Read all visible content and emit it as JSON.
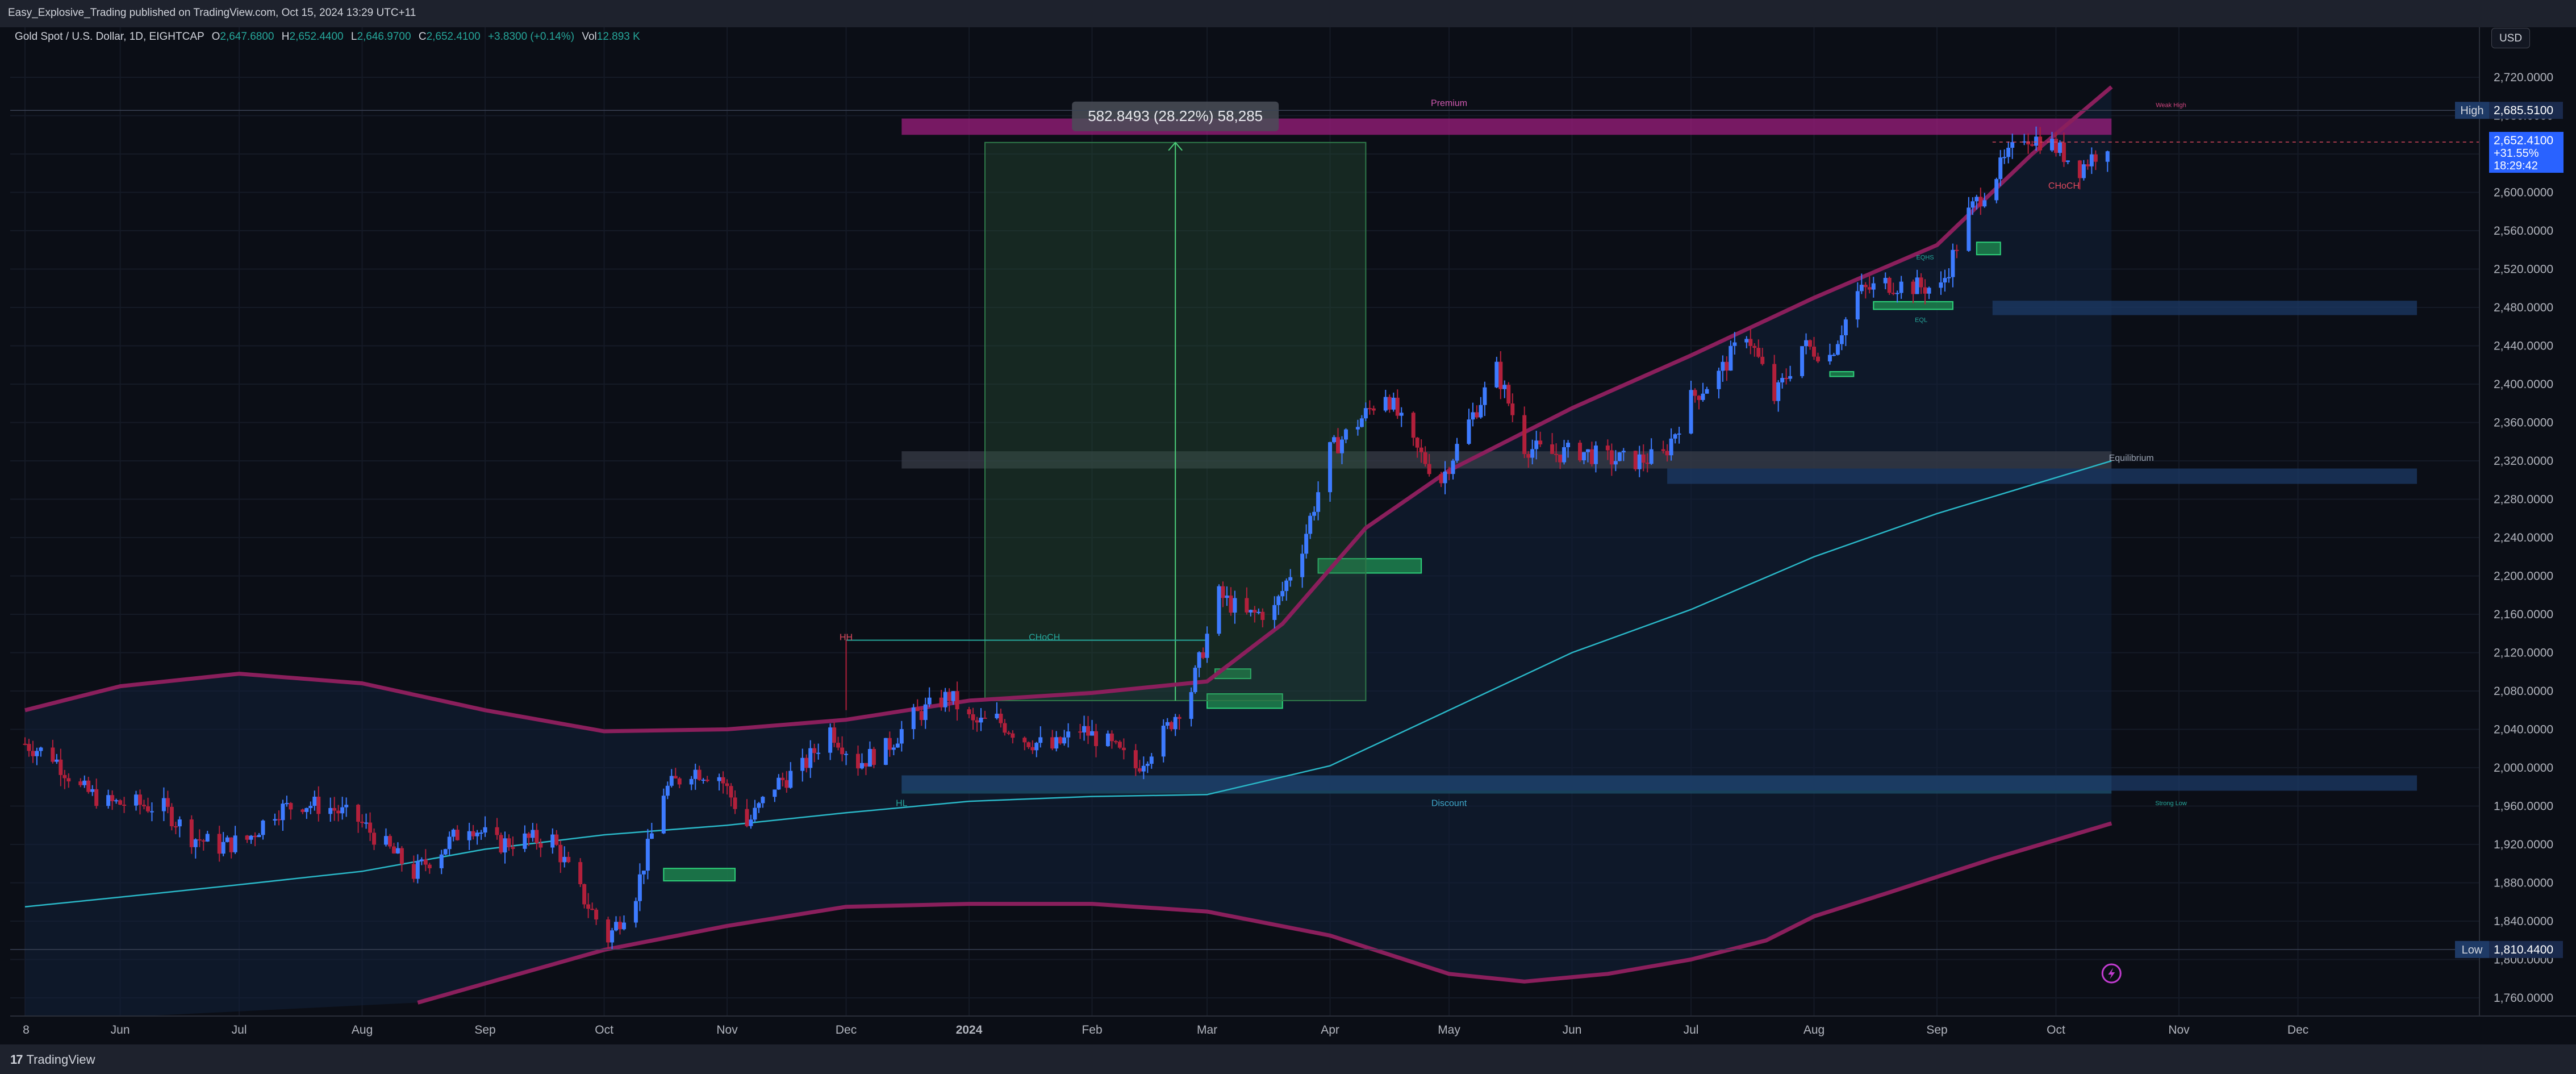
{
  "header": {
    "publish_text": "Easy_Explosive_Trading published on TradingView.com, Oct 15, 2024 13:29 UTC+11"
  },
  "symbol": {
    "name": "Gold Spot / U.S. Dollar, 1D, EIGHTCAP",
    "o_label": "O",
    "o_value": "2,647.6800",
    "h_label": "H",
    "h_value": "2,652.4400",
    "l_label": "L",
    "l_value": "2,646.9700",
    "c_label": "C",
    "c_value": "2,652.4100",
    "change": "+3.8300 (+0.14%)",
    "vol_label": "Vol",
    "vol_value": "12.893 K"
  },
  "currency_button": "USD",
  "footer": {
    "brand": "TradingView",
    "logo_mark": "17"
  },
  "colors": {
    "background": "#0b0e16",
    "bull": "#3d7bff",
    "bear": "#b2203b",
    "band": "#8a1f5c",
    "ema": "#2ab7c7",
    "premium": "#9c1d7e",
    "discount": "#1c4f6b",
    "equilibrium": "#3b3f4a",
    "order_block": "#1f8f52",
    "fvg_blue": "#1c3a66"
  },
  "chart_data": {
    "type": "candlestick",
    "symbol": "XAUUSD",
    "timeframe": "1D",
    "y_ticks": [
      1760,
      1800,
      1840,
      1880,
      1920,
      1960,
      2000,
      2040,
      2080,
      2120,
      2160,
      2200,
      2240,
      2280,
      2320,
      2360,
      2400,
      2440,
      2480,
      2520,
      2560,
      2600,
      2640,
      2680,
      2720
    ],
    "y_tick_labels": [
      "1,760.0000",
      "1,800.0000",
      "1,840.0000",
      "1,880.0000",
      "1,920.0000",
      "1,960.0000",
      "2,000.0000",
      "2,040.0000",
      "2,080.0000",
      "2,120.0000",
      "2,160.0000",
      "2,200.0000",
      "2,240.0000",
      "2,280.0000",
      "2,320.0000",
      "2,360.0000",
      "2,400.0000",
      "2,440.0000",
      "2,480.0000",
      "2,520.0000",
      "2,560.0000",
      "2,600.0000",
      "2,640.0000",
      "2,680.0000",
      "2,720.0000"
    ],
    "ylim": [
      1735,
      2745
    ],
    "x_start": "2023-05-08",
    "x_end": "2024-12-31",
    "x_ticks": [
      {
        "date": "2023-05-08",
        "label": "8"
      },
      {
        "date": "2023-06-01",
        "label": "Jun"
      },
      {
        "date": "2023-07-01",
        "label": "Jul"
      },
      {
        "date": "2023-08-01",
        "label": "Aug"
      },
      {
        "date": "2023-09-01",
        "label": "Sep"
      },
      {
        "date": "2023-10-01",
        "label": "Oct"
      },
      {
        "date": "2023-11-01",
        "label": "Nov"
      },
      {
        "date": "2023-12-01",
        "label": "Dec"
      },
      {
        "date": "2024-01-01",
        "label": "2024"
      },
      {
        "date": "2024-02-01",
        "label": "Feb"
      },
      {
        "date": "2024-03-01",
        "label": "Mar"
      },
      {
        "date": "2024-04-01",
        "label": "Apr"
      },
      {
        "date": "2024-05-01",
        "label": "May"
      },
      {
        "date": "2024-06-01",
        "label": "Jun"
      },
      {
        "date": "2024-07-01",
        "label": "Jul"
      },
      {
        "date": "2024-08-01",
        "label": "Aug"
      },
      {
        "date": "2024-09-01",
        "label": "Sep"
      },
      {
        "date": "2024-10-01",
        "label": "Oct"
      },
      {
        "date": "2024-11-01",
        "label": "Nov"
      },
      {
        "date": "2024-12-01",
        "label": "Dec"
      }
    ],
    "close_path": [
      [
        "2023-05-08",
        2025
      ],
      [
        "2023-05-15",
        2012
      ],
      [
        "2023-05-22",
        1978
      ],
      [
        "2023-05-29",
        1963
      ],
      [
        "2023-06-05",
        1962
      ],
      [
        "2023-06-12",
        1958
      ],
      [
        "2023-06-19",
        1928
      ],
      [
        "2023-06-26",
        1918
      ],
      [
        "2023-07-03",
        1925
      ],
      [
        "2023-07-10",
        1955
      ],
      [
        "2023-07-17",
        1963
      ],
      [
        "2023-07-24",
        1958
      ],
      [
        "2023-07-31",
        1945
      ],
      [
        "2023-08-07",
        1918
      ],
      [
        "2023-08-14",
        1890
      ],
      [
        "2023-08-21",
        1915
      ],
      [
        "2023-08-28",
        1942
      ],
      [
        "2023-09-04",
        1920
      ],
      [
        "2023-09-11",
        1925
      ],
      [
        "2023-09-18",
        1925
      ],
      [
        "2023-09-25",
        1870
      ],
      [
        "2023-10-02",
        1822
      ],
      [
        "2023-10-09",
        1870
      ],
      [
        "2023-10-16",
        1975
      ],
      [
        "2023-10-23",
        1998
      ],
      [
        "2023-10-30",
        1992
      ],
      [
        "2023-11-06",
        1940
      ],
      [
        "2023-11-13",
        1982
      ],
      [
        "2023-11-20",
        2000
      ],
      [
        "2023-11-27",
        2040
      ],
      [
        "2023-12-04",
        2005
      ],
      [
        "2023-12-11",
        2020
      ],
      [
        "2023-12-18",
        2053
      ],
      [
        "2023-12-27",
        2075
      ],
      [
        "2024-01-02",
        2045
      ],
      [
        "2024-01-08",
        2050
      ],
      [
        "2024-01-15",
        2030
      ],
      [
        "2024-01-22",
        2020
      ],
      [
        "2024-01-29",
        2040
      ],
      [
        "2024-02-05",
        2025
      ],
      [
        "2024-02-12",
        2000
      ],
      [
        "2024-02-19",
        2035
      ],
      [
        "2024-02-26",
        2082
      ],
      [
        "2024-03-04",
        2180
      ],
      [
        "2024-03-11",
        2158
      ],
      [
        "2024-03-18",
        2165
      ],
      [
        "2024-03-25",
        2232
      ],
      [
        "2024-04-01",
        2330
      ],
      [
        "2024-04-08",
        2360
      ],
      [
        "2024-04-15",
        2392
      ],
      [
        "2024-04-22",
        2335
      ],
      [
        "2024-04-29",
        2300
      ],
      [
        "2024-05-06",
        2360
      ],
      [
        "2024-05-13",
        2415
      ],
      [
        "2024-05-20",
        2335
      ],
      [
        "2024-05-27",
        2327
      ],
      [
        "2024-06-03",
        2330
      ],
      [
        "2024-06-10",
        2322
      ],
      [
        "2024-06-17",
        2320
      ],
      [
        "2024-06-24",
        2325
      ],
      [
        "2024-07-01",
        2385
      ],
      [
        "2024-07-08",
        2410
      ],
      [
        "2024-07-15",
        2455
      ],
      [
        "2024-07-22",
        2385
      ],
      [
        "2024-07-29",
        2440
      ],
      [
        "2024-08-05",
        2430
      ],
      [
        "2024-08-12",
        2495
      ],
      [
        "2024-08-19",
        2505
      ],
      [
        "2024-08-26",
        2502
      ],
      [
        "2024-09-02",
        2500
      ],
      [
        "2024-09-09",
        2578
      ],
      [
        "2024-09-16",
        2620
      ],
      [
        "2024-09-23",
        2660
      ],
      [
        "2024-09-30",
        2650
      ],
      [
        "2024-10-07",
        2625
      ],
      [
        "2024-10-14",
        2652
      ]
    ],
    "upper_band": [
      [
        "2023-05-08",
        2060
      ],
      [
        "2023-06-01",
        2085
      ],
      [
        "2023-07-01",
        2098
      ],
      [
        "2023-08-01",
        2088
      ],
      [
        "2023-09-01",
        2060
      ],
      [
        "2023-10-01",
        2038
      ],
      [
        "2023-11-01",
        2040
      ],
      [
        "2023-12-01",
        2050
      ],
      [
        "2024-01-01",
        2070
      ],
      [
        "2024-02-01",
        2078
      ],
      [
        "2024-03-01",
        2090
      ],
      [
        "2024-03-20",
        2150
      ],
      [
        "2024-04-10",
        2250
      ],
      [
        "2024-05-01",
        2310
      ],
      [
        "2024-06-01",
        2375
      ],
      [
        "2024-07-01",
        2430
      ],
      [
        "2024-08-01",
        2490
      ],
      [
        "2024-09-01",
        2545
      ],
      [
        "2024-09-25",
        2640
      ],
      [
        "2024-10-15",
        2710
      ]
    ],
    "lower_band": [
      [
        "2023-08-15",
        1755
      ],
      [
        "2023-09-01",
        1775
      ],
      [
        "2023-10-01",
        1810
      ],
      [
        "2023-11-01",
        1835
      ],
      [
        "2023-12-01",
        1855
      ],
      [
        "2024-01-01",
        1858
      ],
      [
        "2024-02-01",
        1858
      ],
      [
        "2024-03-01",
        1850
      ],
      [
        "2024-04-01",
        1825
      ],
      [
        "2024-05-01",
        1785
      ],
      [
        "2024-05-20",
        1777
      ],
      [
        "2024-06-10",
        1785
      ],
      [
        "2024-07-01",
        1800
      ],
      [
        "2024-07-20",
        1820
      ],
      [
        "2024-08-01",
        1845
      ],
      [
        "2024-08-20",
        1870
      ],
      [
        "2024-09-15",
        1905
      ],
      [
        "2024-10-15",
        1942
      ]
    ],
    "ema": [
      [
        "2023-05-08",
        1855
      ],
      [
        "2023-06-01",
        1865
      ],
      [
        "2023-07-01",
        1878
      ],
      [
        "2023-08-01",
        1892
      ],
      [
        "2023-09-01",
        1915
      ],
      [
        "2023-10-01",
        1930
      ],
      [
        "2023-11-01",
        1940
      ],
      [
        "2023-12-01",
        1953
      ],
      [
        "2024-01-01",
        1965
      ],
      [
        "2024-02-01",
        1970
      ],
      [
        "2024-03-01",
        1972
      ],
      [
        "2024-04-01",
        2002
      ],
      [
        "2024-05-01",
        2060
      ],
      [
        "2024-06-01",
        2120
      ],
      [
        "2024-07-01",
        2165
      ],
      [
        "2024-08-01",
        2220
      ],
      [
        "2024-09-01",
        2265
      ],
      [
        "2024-10-15",
        2320
      ]
    ],
    "zones": [
      {
        "kind": "premium",
        "from": "2023-12-15",
        "to": "2024-10-15",
        "low": 2660,
        "high": 2677
      },
      {
        "kind": "equilibrium",
        "from": "2023-12-15",
        "to": "2024-10-15",
        "low": 2312,
        "high": 2330
      },
      {
        "kind": "discount",
        "from": "2023-12-15",
        "to": "2024-10-15",
        "low": 1973,
        "high": 1992
      },
      {
        "kind": "fvg",
        "from": "2024-09-15",
        "to": "2024-12-31",
        "low": 2472,
        "high": 2487
      },
      {
        "kind": "fvg",
        "from": "2024-06-25",
        "to": "2024-12-31",
        "low": 2296,
        "high": 2312
      },
      {
        "kind": "fvg",
        "from": "2023-12-15",
        "to": "2024-12-31",
        "low": 1976,
        "high": 1992
      },
      {
        "kind": "order_block",
        "from": "2023-10-16",
        "to": "2023-11-03",
        "low": 1882,
        "high": 1895
      },
      {
        "kind": "order_block",
        "from": "2024-03-01",
        "to": "2024-03-20",
        "low": 2062,
        "high": 2077
      },
      {
        "kind": "order_block",
        "from": "2024-03-03",
        "to": "2024-03-12",
        "low": 2093,
        "high": 2103
      },
      {
        "kind": "order_block",
        "from": "2024-03-29",
        "to": "2024-04-24",
        "low": 2203,
        "high": 2218
      },
      {
        "kind": "order_block",
        "from": "2024-08-05",
        "to": "2024-08-11",
        "low": 2408,
        "high": 2413
      },
      {
        "kind": "order_block",
        "from": "2024-08-16",
        "to": "2024-09-05",
        "low": 2478,
        "high": 2486
      },
      {
        "kind": "order_block",
        "from": "2024-09-11",
        "to": "2024-09-17",
        "low": 2535,
        "high": 2548
      }
    ],
    "measure": {
      "from": "2024-01-05",
      "to": "2024-04-10",
      "start": 2070,
      "end": 2652,
      "label": "582.8493 (28.22%) 58,285"
    },
    "annotations": [
      {
        "text": "Premium",
        "date": "2024-05-01",
        "price": 2690
      },
      {
        "text": "Equilibrium",
        "date": "2024-10-20",
        "price": 2320
      },
      {
        "text": "Discount",
        "date": "2024-05-01",
        "price": 1960
      },
      {
        "text": "HH",
        "date": "2023-12-01",
        "price": 2133
      },
      {
        "text": "CHoCH",
        "date": "2024-01-20",
        "price": 2133
      },
      {
        "text": "HL",
        "date": "2023-12-15",
        "price": 1960
      },
      {
        "text": "Weak High",
        "date": "2024-10-30",
        "price": 2689
      },
      {
        "text": "Strong Low",
        "date": "2024-10-30",
        "price": 1961
      },
      {
        "text": "CHoCH",
        "date": "2024-10-03",
        "price": 2604
      },
      {
        "text": "EQHS",
        "date": "2024-08-29",
        "price": 2530
      },
      {
        "text": "EQL",
        "date": "2024-08-28",
        "price": 2465
      }
    ],
    "price_markers": [
      {
        "kind": "high",
        "label": "High",
        "price": 2685.51,
        "value": "2,685.5100"
      },
      {
        "kind": "low",
        "label": "Low",
        "price": 1810.44,
        "value": "1,810.4400"
      }
    ],
    "current_price": {
      "price": 2652.41,
      "value": "2,652.4100",
      "change": "+31.55%",
      "countdown": "18:29:42"
    }
  }
}
